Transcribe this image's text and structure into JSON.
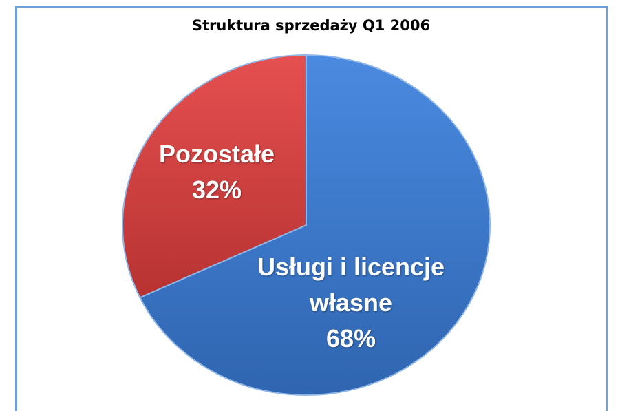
{
  "chart_data": {
    "type": "pie",
    "title": "Struktura sprzedaży Q1 2006",
    "categories": [
      "Usługi i licencje własne",
      "Pozostałe"
    ],
    "values": [
      68,
      32
    ],
    "value_labels": [
      "68%",
      "32%"
    ],
    "colors": [
      "#3f7fd2",
      "#d94444"
    ]
  }
}
